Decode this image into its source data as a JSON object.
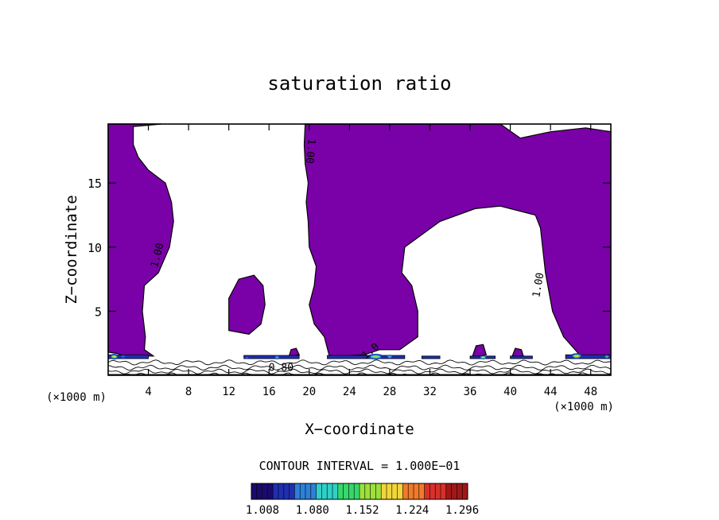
{
  "chart_data": {
    "type": "contour",
    "title": "saturation ratio",
    "xlabel": "X−coordinate",
    "ylabel": "Z−coordinate",
    "x_unit_left": "(×1000 m)",
    "x_unit_right": "(×1000 m)",
    "xlim": [
      0,
      50
    ],
    "ylim": [
      0,
      19.6
    ],
    "x_ticks": [
      4,
      8,
      12,
      16,
      20,
      24,
      28,
      32,
      36,
      40,
      44,
      48
    ],
    "y_ticks": [
      5,
      10,
      15
    ],
    "contour_interval_text": "CONTOUR INTERVAL = 1.000E−01",
    "contour_labels": [
      {
        "text": "1.00",
        "x": 5.2,
        "y": 9.3,
        "rot": -75
      },
      {
        "text": "1.00",
        "x": 19.8,
        "y": 17.5,
        "rot": 95
      },
      {
        "text": "1.00",
        "x": 43.1,
        "y": 7.0,
        "rot": -80
      },
      {
        "text": "0.80",
        "x": 17.2,
        "y": 0.35,
        "rot": 0
      },
      {
        "text": "1.0",
        "x": 26.3,
        "y": 1.7,
        "rot": -40
      }
    ],
    "colorbar": {
      "tick_labels": [
        "1.008",
        "1.080",
        "1.152",
        "1.224",
        "1.296"
      ],
      "min": 1.008,
      "max": 1.32
    },
    "regions": [
      {
        "name": "left-column",
        "points": [
          [
            0,
            19.6
          ],
          [
            3.5,
            19.6
          ],
          [
            5.3,
            19.6
          ],
          [
            2.5,
            19.4
          ],
          [
            2.5,
            18.0
          ],
          [
            3.0,
            17.0
          ],
          [
            4.0,
            16.0
          ],
          [
            5.7,
            15.0
          ],
          [
            6.3,
            13.5
          ],
          [
            6.5,
            12.0
          ],
          [
            6.1,
            10.0
          ],
          [
            5.0,
            8.0
          ],
          [
            3.6,
            7.0
          ],
          [
            3.4,
            5.0
          ],
          [
            3.7,
            3.0
          ],
          [
            3.6,
            2.0
          ],
          [
            4.5,
            1.5
          ],
          [
            3.0,
            1.5
          ],
          [
            1.8,
            1.4
          ],
          [
            1.0,
            1.7
          ],
          [
            0,
            1.8
          ]
        ]
      },
      {
        "name": "middle-blob",
        "points": [
          [
            12.0,
            3.5
          ],
          [
            12.0,
            6.0
          ],
          [
            13.0,
            7.5
          ],
          [
            14.5,
            7.8
          ],
          [
            15.4,
            7.0
          ],
          [
            15.6,
            5.5
          ],
          [
            15.2,
            4.0
          ],
          [
            14.0,
            3.2
          ]
        ]
      },
      {
        "name": "central-plume",
        "points": [
          [
            19.6,
            19.6
          ],
          [
            29.5,
            19.6
          ],
          [
            39.0,
            19.6
          ],
          [
            41.0,
            18.5
          ],
          [
            44.0,
            19.0
          ],
          [
            47.5,
            19.3
          ],
          [
            50,
            19.0
          ],
          [
            50,
            1.5
          ],
          [
            47.0,
            1.5
          ],
          [
            45.3,
            3.0
          ],
          [
            44.2,
            5.0
          ],
          [
            43.5,
            8.0
          ],
          [
            43.0,
            11.5
          ],
          [
            42.5,
            12.5
          ],
          [
            39.0,
            13.2
          ],
          [
            36.5,
            13.0
          ],
          [
            33.0,
            12.0
          ],
          [
            29.5,
            10.0
          ],
          [
            29.2,
            8.0
          ],
          [
            30.2,
            7.0
          ],
          [
            30.8,
            5.0
          ],
          [
            30.8,
            3.0
          ],
          [
            29.0,
            2.0
          ],
          [
            27.0,
            2.0
          ],
          [
            25.5,
            1.6
          ],
          [
            23.0,
            1.5
          ],
          [
            22.0,
            1.5
          ],
          [
            21.5,
            3.0
          ],
          [
            20.5,
            4.0
          ],
          [
            20.0,
            5.5
          ],
          [
            20.5,
            7.0
          ],
          [
            20.7,
            8.5
          ],
          [
            20.0,
            10.0
          ],
          [
            19.9,
            12.0
          ],
          [
            19.7,
            13.5
          ],
          [
            19.9,
            15.0
          ],
          [
            19.6,
            16.5
          ],
          [
            19.5,
            18.0
          ]
        ]
      },
      {
        "name": "blob-18",
        "points": [
          [
            18.0,
            1.5
          ],
          [
            18.2,
            2.0
          ],
          [
            18.7,
            2.1
          ],
          [
            19.0,
            1.6
          ]
        ]
      },
      {
        "name": "blob-37",
        "points": [
          [
            36.2,
            1.4
          ],
          [
            36.6,
            2.3
          ],
          [
            37.3,
            2.4
          ],
          [
            37.6,
            1.6
          ]
        ]
      },
      {
        "name": "blob-40",
        "points": [
          [
            40.2,
            1.5
          ],
          [
            40.5,
            2.1
          ],
          [
            41.1,
            2.0
          ],
          [
            41.3,
            1.5
          ]
        ]
      }
    ],
    "hotspots": [
      {
        "x": 0.6,
        "y": 1.45,
        "w": 0.9,
        "h": 0.45,
        "value": 1.2
      },
      {
        "x": 1.5,
        "y": 1.45,
        "w": 0.9,
        "h": 0.3,
        "value": 1.1
      },
      {
        "x": 13.8,
        "y": 1.4,
        "w": 0.6,
        "h": 0.25,
        "value": 1.1
      },
      {
        "x": 16.8,
        "y": 1.4,
        "w": 0.6,
        "h": 0.3,
        "value": 1.14
      },
      {
        "x": 26.6,
        "y": 1.45,
        "w": 1.6,
        "h": 0.45,
        "value": 1.18
      },
      {
        "x": 28.0,
        "y": 1.45,
        "w": 0.7,
        "h": 0.3,
        "value": 1.13
      },
      {
        "x": 37.3,
        "y": 1.4,
        "w": 0.8,
        "h": 0.3,
        "value": 1.2
      },
      {
        "x": 46.6,
        "y": 1.5,
        "w": 1.2,
        "h": 0.45,
        "value": 1.22
      },
      {
        "x": 49.6,
        "y": 1.45,
        "w": 0.6,
        "h": 0.3,
        "value": 1.15
      }
    ],
    "strips": [
      {
        "x0": 0,
        "x1": 4.0,
        "y0": 1.3,
        "y1": 1.6
      },
      {
        "x0": 13.5,
        "x1": 19.0,
        "y0": 1.3,
        "y1": 1.55
      },
      {
        "x0": 21.8,
        "x1": 29.5,
        "y0": 1.3,
        "y1": 1.55
      },
      {
        "x0": 31.2,
        "x1": 33.0,
        "y0": 1.3,
        "y1": 1.5
      },
      {
        "x0": 36.0,
        "x1": 38.5,
        "y0": 1.3,
        "y1": 1.5
      },
      {
        "x0": 40.0,
        "x1": 42.2,
        "y0": 1.3,
        "y1": 1.5
      },
      {
        "x0": 45.5,
        "x1": 50.0,
        "y0": 1.3,
        "y1": 1.6
      }
    ],
    "near_surface_isolines": [
      1.0,
      0.6,
      0.3,
      0.0,
      -0.2
    ],
    "colors": {
      "fill": "#7a00a8",
      "stroke": "#000000",
      "colormap": [
        "#1a0a6b",
        "#1f2fb0",
        "#2e7fd8",
        "#2fd0c8",
        "#35d86a",
        "#9de03a",
        "#f2d53a",
        "#f07a2a",
        "#d8302a",
        "#a01818"
      ]
    }
  }
}
